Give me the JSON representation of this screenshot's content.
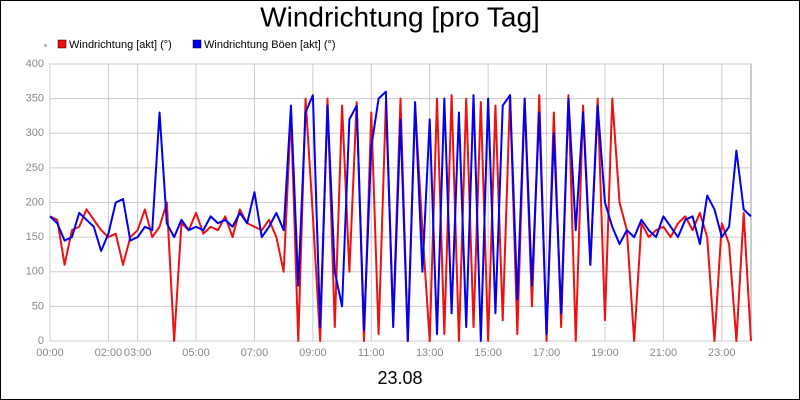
{
  "chart_data": {
    "type": "line",
    "title": "Windrichtung [pro Tag]",
    "x_label": "23.08",
    "x": [
      0,
      0.25,
      0.5,
      0.75,
      1,
      1.25,
      1.5,
      1.75,
      2,
      2.25,
      2.5,
      2.75,
      3,
      3.25,
      3.5,
      3.75,
      4,
      4.25,
      4.5,
      4.75,
      5,
      5.25,
      5.5,
      5.75,
      6,
      6.25,
      6.5,
      6.75,
      7,
      7.25,
      7.5,
      7.75,
      8,
      8.25,
      8.5,
      8.75,
      9,
      9.25,
      9.5,
      9.75,
      10,
      10.25,
      10.5,
      10.75,
      11,
      11.25,
      11.5,
      11.75,
      12,
      12.25,
      12.5,
      12.75,
      13,
      13.25,
      13.5,
      13.75,
      14,
      14.25,
      14.5,
      14.75,
      15,
      15.25,
      15.5,
      15.75,
      16,
      16.25,
      16.5,
      16.75,
      17,
      17.25,
      17.5,
      17.75,
      18,
      18.25,
      18.5,
      18.75,
      19,
      19.25,
      19.5,
      19.75,
      20,
      20.25,
      20.5,
      20.75,
      21,
      21.25,
      21.5,
      21.75,
      22,
      22.25,
      22.5,
      22.75,
      23,
      23.25,
      23.5,
      23.75,
      24
    ],
    "series": [
      {
        "name": "Windrichtung [akt] (°)",
        "color": "#ee1111",
        "values": [
          180,
          175,
          110,
          160,
          165,
          190,
          175,
          160,
          150,
          155,
          110,
          150,
          160,
          190,
          150,
          165,
          200,
          0,
          170,
          160,
          185,
          155,
          165,
          160,
          180,
          150,
          190,
          170,
          165,
          160,
          175,
          150,
          100,
          330,
          0,
          350,
          180,
          0,
          350,
          20,
          340,
          100,
          345,
          0,
          330,
          10,
          345,
          30,
          350,
          0,
          340,
          160,
          0,
          350,
          10,
          355,
          0,
          350,
          20,
          345,
          0,
          340,
          30,
          355,
          10,
          350,
          50,
          355,
          0,
          330,
          20,
          355,
          0,
          340,
          110,
          350,
          30,
          350,
          200,
          160,
          0,
          170,
          150,
          160,
          165,
          150,
          170,
          180,
          160,
          185,
          150,
          0,
          170,
          140,
          0,
          185,
          0
        ]
      },
      {
        "name": "Windrichtung Böen [akt] (°)",
        "color": "#0000ee",
        "values": [
          180,
          170,
          145,
          150,
          185,
          175,
          165,
          130,
          155,
          200,
          205,
          145,
          150,
          165,
          160,
          330,
          170,
          150,
          175,
          160,
          165,
          160,
          180,
          170,
          175,
          165,
          185,
          170,
          215,
          150,
          165,
          185,
          160,
          340,
          80,
          330,
          355,
          20,
          340,
          100,
          50,
          320,
          340,
          15,
          280,
          350,
          360,
          20,
          320,
          0,
          345,
          100,
          320,
          10,
          350,
          40,
          330,
          20,
          355,
          0,
          350,
          40,
          340,
          355,
          60,
          350,
          80,
          330,
          10,
          300,
          40,
          350,
          160,
          330,
          110,
          340,
          200,
          165,
          140,
          160,
          150,
          175,
          160,
          150,
          180,
          165,
          150,
          175,
          180,
          140,
          210,
          190,
          150,
          165,
          275,
          190,
          180
        ]
      }
    ],
    "xlim": [
      0,
      24
    ],
    "xticks": [
      {
        "value": 0,
        "label": "00:00"
      },
      {
        "value": 2,
        "label": "02:00"
      },
      {
        "value": 3,
        "label": "03:00"
      },
      {
        "value": 5,
        "label": "05:00"
      },
      {
        "value": 7,
        "label": "07:00"
      },
      {
        "value": 9,
        "label": "09:00"
      },
      {
        "value": 11,
        "label": "11:00"
      },
      {
        "value": 13,
        "label": "13:00"
      },
      {
        "value": 15,
        "label": "15:00"
      },
      {
        "value": 17,
        "label": "17:00"
      },
      {
        "value": 19,
        "label": "19:00"
      },
      {
        "value": 21,
        "label": "21:00"
      },
      {
        "value": 23,
        "label": "23:00"
      }
    ],
    "ylim": [
      0,
      400
    ],
    "yticks": [
      0,
      50,
      100,
      150,
      200,
      250,
      300,
      350,
      400
    ],
    "grid": true
  }
}
